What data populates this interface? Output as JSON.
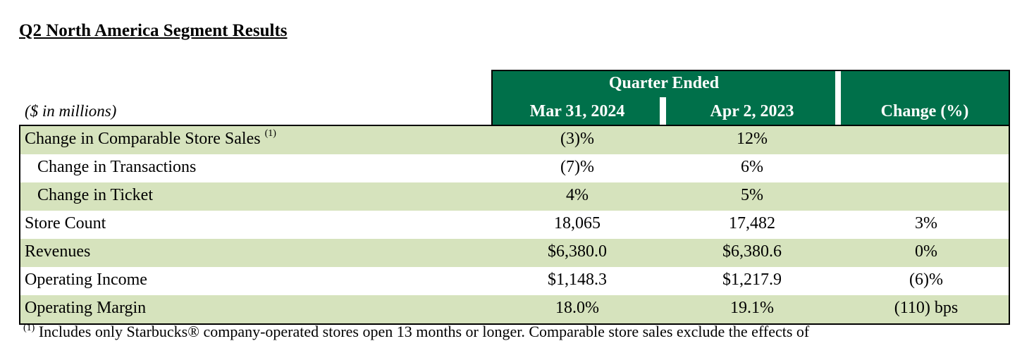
{
  "title": "Q2 North America Segment Results",
  "units_label": "($ in millions)",
  "header": {
    "group_label": "Quarter Ended",
    "col1": "Mar 31, 2024",
    "col2": "Apr 2, 2023",
    "col3": "Change (%)"
  },
  "colors": {
    "header_bg": "#00704A",
    "row_shade": "#D6E3BD"
  },
  "rows": [
    {
      "label": "Change in Comparable Store Sales",
      "sup": "(1)",
      "v1": "(3)%",
      "v2": "12%",
      "v3": ""
    },
    {
      "label": "Change in Transactions",
      "v1": "(7)%",
      "v2": "6%",
      "v3": ""
    },
    {
      "label": "Change in Ticket",
      "v1": "4%",
      "v2": "5%",
      "v3": ""
    },
    {
      "label": "Store Count",
      "v1": "18,065",
      "v2": "17,482",
      "v3": "3%"
    },
    {
      "label": "Revenues",
      "v1": "$6,380.0",
      "v2": "$6,380.6",
      "v3": "0%"
    },
    {
      "label": "Operating Income",
      "v1": "$1,148.3",
      "v2": "$1,217.9",
      "v3": "(6)%"
    },
    {
      "label": "Operating Margin",
      "v1": "18.0%",
      "v2": "19.1%",
      "v3": "(110) bps"
    }
  ],
  "footnote": {
    "mark": "(1)",
    "text": "Includes only Starbucks® company-operated stores open 13 months or longer. Comparable store sales exclude the effects of"
  }
}
